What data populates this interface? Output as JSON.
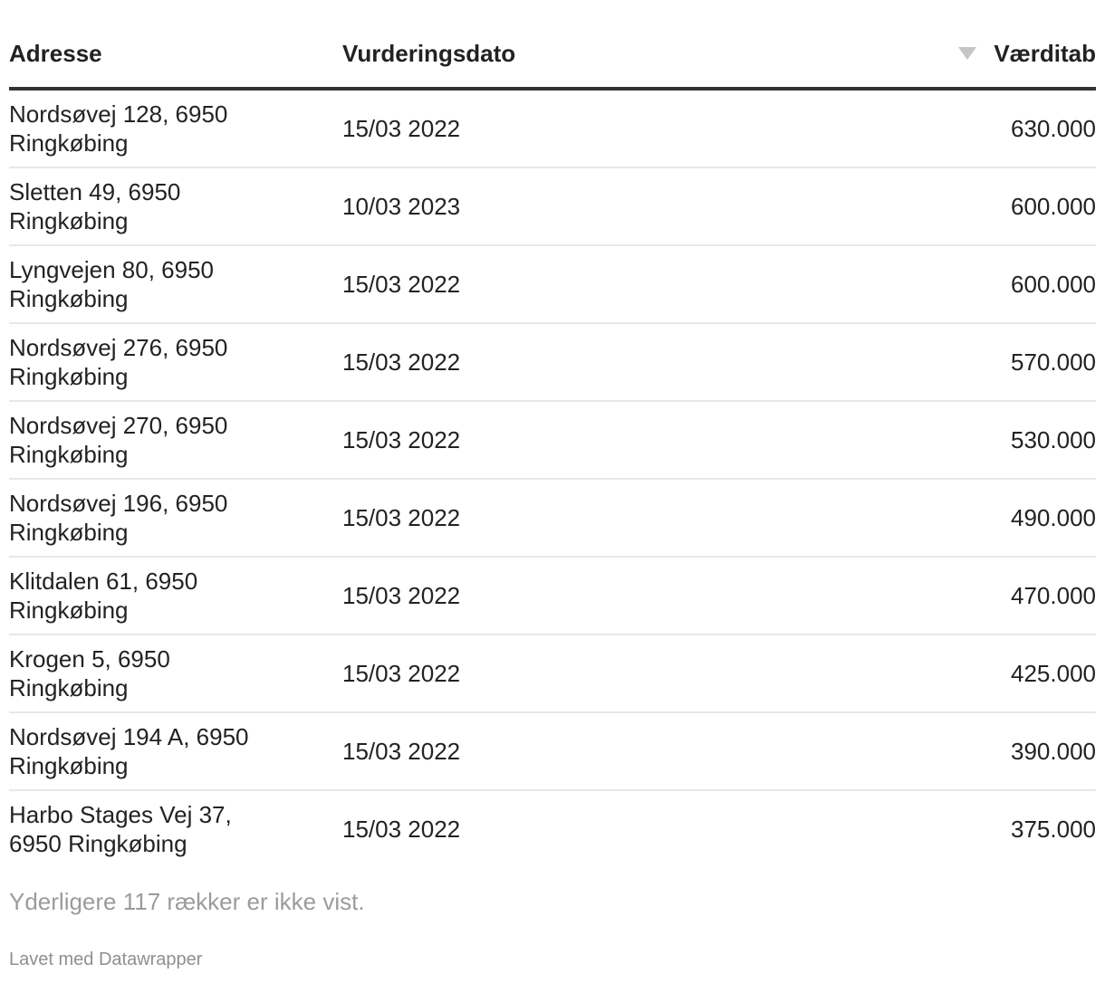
{
  "chart_data": {
    "type": "table",
    "columns": [
      "Adresse",
      "Vurderingsdato",
      "Værditab"
    ],
    "rows": [
      [
        "Nordsøvej 128, 6950 Ringkøbing",
        "15/03 2022",
        "630.000"
      ],
      [
        "Sletten 49, 6950 Ringkøbing",
        "10/03 2023",
        "600.000"
      ],
      [
        "Lyngvejen 80, 6950 Ringkøbing",
        "15/03 2022",
        "600.000"
      ],
      [
        "Nordsøvej 276, 6950 Ringkøbing",
        "15/03 2022",
        "570.000"
      ],
      [
        "Nordsøvej 270, 6950 Ringkøbing",
        "15/03 2022",
        "530.000"
      ],
      [
        "Nordsøvej 196, 6950 Ringkøbing",
        "15/03 2022",
        "490.000"
      ],
      [
        "Klitdalen 61, 6950 Ringkøbing",
        "15/03 2022",
        "470.000"
      ],
      [
        "Krogen 5, 6950 Ringkøbing",
        "15/03 2022",
        "425.000"
      ],
      [
        "Nordsøvej 194 A, 6950 Ringkøbing",
        "15/03 2022",
        "390.000"
      ],
      [
        "Harbo Stages Vej 37, 6950 Ringkøbing",
        "15/03 2022",
        "375.000"
      ]
    ],
    "sort": {
      "column": "Værditab",
      "direction": "desc"
    },
    "hidden_rows_count": 117
  },
  "footer": {
    "note": "Yderligere 117 rækker er ikke vist.",
    "attribution": "Lavet med Datawrapper"
  },
  "icons": {
    "sort_desc": "▼"
  },
  "colors": {
    "text": "#222222",
    "header_rule": "#333333",
    "row_divider": "#e8e8e8",
    "sort_icon": "#c5c5c5",
    "muted_text": "#9b9b9b"
  }
}
